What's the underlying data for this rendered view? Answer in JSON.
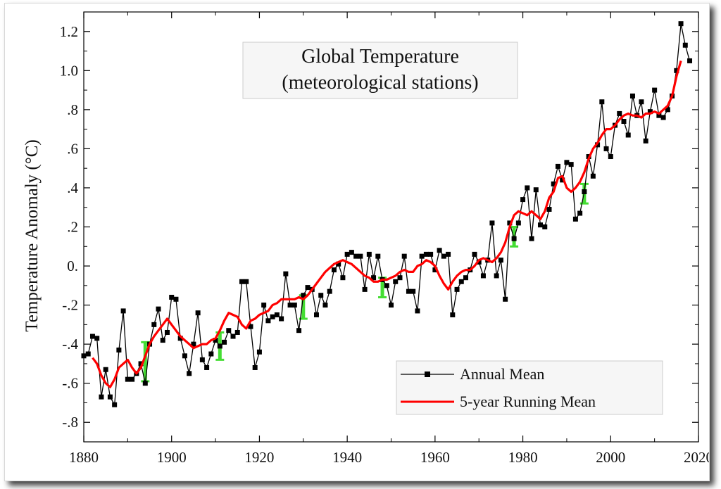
{
  "chart_data": {
    "type": "line",
    "title": "Global Temperature",
    "subtitle": "(meteorological stations)",
    "xlabel": "",
    "ylabel": "Temperature Anomaly (°C)",
    "xlim": [
      1880,
      2020
    ],
    "ylim": [
      -0.9,
      1.3
    ],
    "x_ticks": [
      1880,
      1900,
      1920,
      1940,
      1960,
      1980,
      2000,
      2020
    ],
    "y_ticks": [
      -0.8,
      -0.6,
      -0.4,
      -0.2,
      0.0,
      0.2,
      0.4,
      0.6,
      0.8,
      1.0,
      1.2
    ],
    "y_tick_labels": [
      "-.8",
      "-.6",
      "-.4",
      "-.2",
      "0.",
      ".2",
      ".4",
      ".6",
      ".8",
      "1.0",
      "1.2"
    ],
    "x_tick_labels": [
      "1880",
      "1900",
      "1920",
      "1940",
      "1960",
      "1980",
      "2000",
      "2020"
    ],
    "grid": false,
    "legend_position": "bottom-right",
    "series": [
      {
        "name": "Annual Mean",
        "color": "#000000",
        "marker": "square",
        "x": [
          1880,
          1881,
          1882,
          1883,
          1884,
          1885,
          1886,
          1887,
          1888,
          1889,
          1890,
          1891,
          1892,
          1893,
          1894,
          1895,
          1896,
          1897,
          1898,
          1899,
          1900,
          1901,
          1902,
          1903,
          1904,
          1905,
          1906,
          1907,
          1908,
          1909,
          1910,
          1911,
          1912,
          1913,
          1914,
          1915,
          1916,
          1917,
          1918,
          1919,
          1920,
          1921,
          1922,
          1923,
          1924,
          1925,
          1926,
          1927,
          1928,
          1929,
          1930,
          1931,
          1932,
          1933,
          1934,
          1935,
          1936,
          1937,
          1938,
          1939,
          1940,
          1941,
          1942,
          1943,
          1944,
          1945,
          1946,
          1947,
          1948,
          1949,
          1950,
          1951,
          1952,
          1953,
          1954,
          1955,
          1956,
          1957,
          1958,
          1959,
          1960,
          1961,
          1962,
          1963,
          1964,
          1965,
          1966,
          1967,
          1968,
          1969,
          1970,
          1971,
          1972,
          1973,
          1974,
          1975,
          1976,
          1977,
          1978,
          1979,
          1980,
          1981,
          1982,
          1983,
          1984,
          1985,
          1986,
          1987,
          1988,
          1989,
          1990,
          1991,
          1992,
          1993,
          1994,
          1995,
          1996,
          1997,
          1998,
          1999,
          2000,
          2001,
          2002,
          2003,
          2004,
          2005,
          2006,
          2007,
          2008,
          2009,
          2010,
          2011,
          2012,
          2013,
          2014,
          2015,
          2016,
          2017,
          2018
        ],
        "y": [
          -0.46,
          -0.45,
          -0.36,
          -0.37,
          -0.67,
          -0.53,
          -0.67,
          -0.71,
          -0.43,
          -0.23,
          -0.58,
          -0.58,
          -0.55,
          -0.5,
          -0.6,
          -0.4,
          -0.3,
          -0.22,
          -0.38,
          -0.34,
          -0.16,
          -0.17,
          -0.37,
          -0.46,
          -0.55,
          -0.4,
          -0.24,
          -0.48,
          -0.52,
          -0.45,
          -0.38,
          -0.41,
          -0.39,
          -0.33,
          -0.36,
          -0.34,
          -0.08,
          -0.08,
          -0.31,
          -0.52,
          -0.44,
          -0.2,
          -0.28,
          -0.26,
          -0.25,
          -0.27,
          -0.04,
          -0.2,
          -0.2,
          -0.33,
          -0.15,
          -0.11,
          -0.12,
          -0.25,
          -0.15,
          -0.2,
          -0.13,
          -0.02,
          0.01,
          -0.06,
          0.06,
          0.07,
          0.05,
          0.05,
          -0.12,
          0.06,
          -0.06,
          0.05,
          -0.07,
          -0.1,
          -0.2,
          -0.08,
          -0.06,
          0.05,
          -0.13,
          -0.13,
          -0.23,
          0.05,
          0.06,
          0.06,
          -0.02,
          0.08,
          0.05,
          0.06,
          -0.25,
          -0.12,
          -0.08,
          -0.06,
          -0.02,
          0.06,
          0.02,
          -0.05,
          0.03,
          0.22,
          -0.05,
          0.03,
          -0.17,
          0.22,
          0.14,
          0.22,
          0.34,
          0.4,
          0.14,
          0.39,
          0.21,
          0.2,
          0.29,
          0.42,
          0.51,
          0.44,
          0.53,
          0.52,
          0.24,
          0.27,
          0.38,
          0.56,
          0.46,
          0.62,
          0.84,
          0.6,
          0.56,
          0.72,
          0.78,
          0.74,
          0.67,
          0.87,
          0.77,
          0.84,
          0.64,
          0.79,
          0.9,
          0.77,
          0.76,
          0.8,
          0.87,
          1.0,
          1.24,
          1.13,
          1.05
        ]
      },
      {
        "name": "5-year Running Mean",
        "color": "#ff0000",
        "x": [
          1882,
          1883,
          1884,
          1885,
          1886,
          1887,
          1888,
          1889,
          1890,
          1891,
          1892,
          1893,
          1894,
          1895,
          1896,
          1897,
          1898,
          1899,
          1900,
          1901,
          1902,
          1903,
          1904,
          1905,
          1906,
          1907,
          1908,
          1909,
          1910,
          1911,
          1912,
          1913,
          1914,
          1915,
          1916,
          1917,
          1918,
          1919,
          1920,
          1921,
          1922,
          1923,
          1924,
          1925,
          1926,
          1927,
          1928,
          1929,
          1930,
          1931,
          1932,
          1933,
          1934,
          1935,
          1936,
          1937,
          1938,
          1939,
          1940,
          1941,
          1942,
          1943,
          1944,
          1945,
          1946,
          1947,
          1948,
          1949,
          1950,
          1951,
          1952,
          1953,
          1954,
          1955,
          1956,
          1957,
          1958,
          1959,
          1960,
          1961,
          1962,
          1963,
          1964,
          1965,
          1966,
          1967,
          1968,
          1969,
          1970,
          1971,
          1972,
          1973,
          1974,
          1975,
          1976,
          1977,
          1978,
          1979,
          1980,
          1981,
          1982,
          1983,
          1984,
          1985,
          1986,
          1987,
          1988,
          1989,
          1990,
          1991,
          1992,
          1993,
          1994,
          1995,
          1996,
          1997,
          1998,
          1999,
          2000,
          2001,
          2002,
          2003,
          2004,
          2005,
          2006,
          2007,
          2008,
          2009,
          2010,
          2011,
          2012,
          2013,
          2014,
          2015,
          2016
        ],
        "y": [
          -0.47,
          -0.5,
          -0.56,
          -0.6,
          -0.62,
          -0.58,
          -0.52,
          -0.5,
          -0.48,
          -0.52,
          -0.55,
          -0.52,
          -0.46,
          -0.4,
          -0.36,
          -0.33,
          -0.3,
          -0.27,
          -0.3,
          -0.33,
          -0.36,
          -0.38,
          -0.4,
          -0.42,
          -0.41,
          -0.4,
          -0.4,
          -0.38,
          -0.37,
          -0.33,
          -0.28,
          -0.24,
          -0.25,
          -0.26,
          -0.3,
          -0.32,
          -0.28,
          -0.27,
          -0.25,
          -0.24,
          -0.23,
          -0.2,
          -0.19,
          -0.17,
          -0.17,
          -0.17,
          -0.17,
          -0.16,
          -0.17,
          -0.15,
          -0.12,
          -0.09,
          -0.06,
          -0.03,
          -0.01,
          0.01,
          0.02,
          0.03,
          0.02,
          0.01,
          -0.01,
          -0.03,
          -0.05,
          -0.06,
          -0.08,
          -0.08,
          -0.07,
          -0.07,
          -0.06,
          -0.05,
          -0.03,
          -0.02,
          -0.03,
          -0.03,
          0.0,
          0.01,
          0.03,
          0.02,
          0.0,
          -0.05,
          -0.09,
          -0.12,
          -0.08,
          -0.05,
          -0.03,
          -0.02,
          -0.02,
          0.0,
          0.03,
          0.04,
          0.03,
          0.02,
          0.04,
          0.07,
          0.12,
          0.2,
          0.26,
          0.28,
          0.27,
          0.26,
          0.28,
          0.26,
          0.24,
          0.28,
          0.35,
          0.38,
          0.45,
          0.46,
          0.4,
          0.38,
          0.4,
          0.43,
          0.48,
          0.55,
          0.6,
          0.63,
          0.67,
          0.7,
          0.7,
          0.72,
          0.75,
          0.77,
          0.78,
          0.77,
          0.77,
          0.76,
          0.78,
          0.78,
          0.79,
          0.78,
          0.8,
          0.82,
          0.87,
          0.97,
          1.05
        ]
      }
    ],
    "uncertainty_bars": {
      "color": "#44dd33",
      "x": [
        1894,
        1911,
        1930,
        1948,
        1978,
        1994
      ],
      "y": [
        -0.49,
        -0.41,
        -0.21,
        -0.11,
        0.15,
        0.37
      ],
      "err": [
        0.1,
        0.07,
        0.06,
        0.05,
        0.05,
        0.05
      ]
    }
  }
}
